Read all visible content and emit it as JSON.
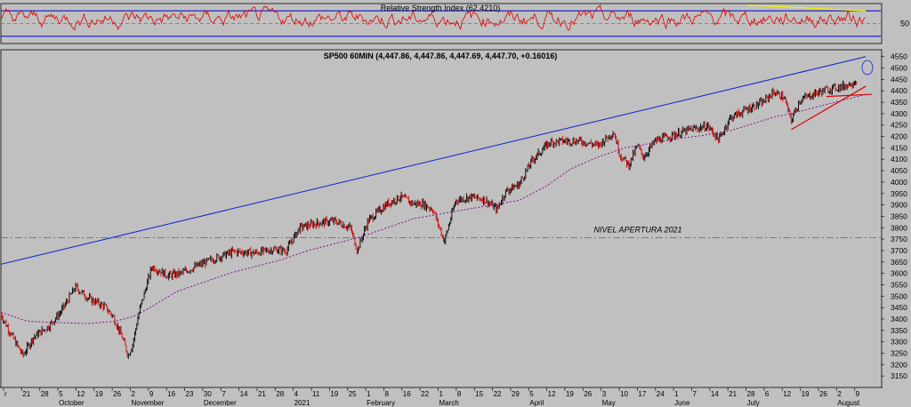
{
  "colors": {
    "background": "#c0c0c0",
    "panel_border": "#2a2a2a",
    "rsi_line": "#e00000",
    "rsi_band": "#1010d0",
    "rsi_trend": "#f0f000",
    "up_bar": "#000000",
    "down_bar": "#d00000",
    "sma": "#800080",
    "trendline": "#1020d0",
    "support_lines": "#e00000",
    "nivel_line": "#707070"
  },
  "rsi_panel": {
    "title": "Relative Strength Index (62.4210)",
    "value": 62.421,
    "levels": [
      30,
      50,
      70
    ],
    "axis_label": "50",
    "ylim": [
      20,
      80
    ]
  },
  "price_panel": {
    "title": "SP500 60MIN (4,447.86, 4,447.86, 4,447.69, 4,447.70, +0.16016)",
    "annotation": "NIVEL APERTURA 2021",
    "nivel_value": 3756
  },
  "x_axis": {
    "day_ticks": [
      "r",
      "21",
      "28",
      "5",
      "12",
      "19",
      "26",
      "2",
      "9",
      "16",
      "23",
      "30",
      "7",
      "14",
      "21",
      "28",
      "4",
      "11",
      "19",
      "25",
      "1",
      "8",
      "16",
      "22",
      "1",
      "8",
      "15",
      "22",
      "29",
      "5",
      "12",
      "19",
      "26",
      "3",
      "10",
      "17",
      "24",
      "1",
      "7",
      "14",
      "21",
      "28",
      "6",
      "12",
      "19",
      "26",
      "2",
      "9"
    ],
    "months": [
      "October",
      "November",
      "December",
      "2021",
      "February",
      "March",
      "April",
      "May",
      "June",
      "July",
      "August"
    ]
  },
  "chart_data": {
    "type": "line",
    "title": "SP500 60MIN (4,447.86, 4,447.86, 4,447.69, 4,447.70, +0.16016)",
    "ylim": [
      3100,
      4580
    ],
    "yticks": [
      3150,
      3200,
      3250,
      3300,
      3350,
      3400,
      3450,
      3500,
      3550,
      3600,
      3650,
      3700,
      3750,
      3800,
      3850,
      3900,
      3950,
      4000,
      4050,
      4100,
      4150,
      4200,
      4250,
      4300,
      4350,
      4400,
      4450,
      4500,
      4550
    ],
    "x_index_range": [
      0,
      1000
    ],
    "series": [
      {
        "kind": "price",
        "points": [
          [
            0,
            3420
          ],
          [
            12,
            3330
          ],
          [
            25,
            3240
          ],
          [
            37,
            3320
          ],
          [
            55,
            3370
          ],
          [
            68,
            3430
          ],
          [
            85,
            3540
          ],
          [
            100,
            3490
          ],
          [
            118,
            3455
          ],
          [
            128,
            3410
          ],
          [
            138,
            3320
          ],
          [
            145,
            3240
          ],
          [
            150,
            3290
          ],
          [
            158,
            3440
          ],
          [
            172,
            3630
          ],
          [
            190,
            3590
          ],
          [
            205,
            3600
          ],
          [
            222,
            3630
          ],
          [
            240,
            3660
          ],
          [
            265,
            3695
          ],
          [
            290,
            3690
          ],
          [
            310,
            3705
          ],
          [
            325,
            3700
          ],
          [
            340,
            3800
          ],
          [
            360,
            3820
          ],
          [
            380,
            3830
          ],
          [
            398,
            3800
          ],
          [
            406,
            3700
          ],
          [
            418,
            3830
          ],
          [
            440,
            3905
          ],
          [
            455,
            3935
          ],
          [
            470,
            3905
          ],
          [
            480,
            3905
          ],
          [
            492,
            3880
          ],
          [
            505,
            3740
          ],
          [
            518,
            3920
          ],
          [
            535,
            3935
          ],
          [
            550,
            3925
          ],
          [
            565,
            3880
          ],
          [
            575,
            3960
          ],
          [
            590,
            3990
          ],
          [
            605,
            4095
          ],
          [
            625,
            4175
          ],
          [
            640,
            4180
          ],
          [
            660,
            4180
          ],
          [
            680,
            4160
          ],
          [
            698,
            4220
          ],
          [
            705,
            4120
          ],
          [
            715,
            4075
          ],
          [
            725,
            4160
          ],
          [
            732,
            4110
          ],
          [
            745,
            4180
          ],
          [
            765,
            4205
          ],
          [
            785,
            4230
          ],
          [
            805,
            4245
          ],
          [
            818,
            4185
          ],
          [
            830,
            4280
          ],
          [
            850,
            4320
          ],
          [
            868,
            4350
          ],
          [
            880,
            4395
          ],
          [
            892,
            4370
          ],
          [
            900,
            4270
          ],
          [
            910,
            4360
          ],
          [
            928,
            4390
          ],
          [
            945,
            4410
          ],
          [
            960,
            4420
          ],
          [
            975,
            4445
          ]
        ]
      },
      {
        "kind": "sma",
        "points": [
          [
            0,
            3430
          ],
          [
            30,
            3390
          ],
          [
            60,
            3385
          ],
          [
            100,
            3380
          ],
          [
            130,
            3390
          ],
          [
            150,
            3410
          ],
          [
            170,
            3450
          ],
          [
            200,
            3520
          ],
          [
            230,
            3560
          ],
          [
            260,
            3600
          ],
          [
            290,
            3630
          ],
          [
            320,
            3660
          ],
          [
            350,
            3700
          ],
          [
            380,
            3730
          ],
          [
            410,
            3760
          ],
          [
            440,
            3800
          ],
          [
            470,
            3840
          ],
          [
            500,
            3860
          ],
          [
            530,
            3880
          ],
          [
            560,
            3900
          ],
          [
            590,
            3920
          ],
          [
            620,
            3980
          ],
          [
            650,
            4060
          ],
          [
            680,
            4110
          ],
          [
            710,
            4150
          ],
          [
            740,
            4170
          ],
          [
            770,
            4190
          ],
          [
            800,
            4205
          ],
          [
            830,
            4225
          ],
          [
            860,
            4260
          ],
          [
            880,
            4285
          ],
          [
            900,
            4300
          ],
          [
            930,
            4330
          ],
          [
            960,
            4360
          ],
          [
            985,
            4385
          ]
        ]
      },
      {
        "kind": "trendline",
        "points": [
          [
            0,
            3640
          ],
          [
            985,
            4550
          ]
        ]
      },
      {
        "kind": "support",
        "points": [
          [
            900,
            4230
          ],
          [
            985,
            4420
          ]
        ]
      },
      {
        "kind": "support",
        "points": [
          [
            940,
            4375
          ],
          [
            992,
            4385
          ]
        ]
      }
    ],
    "rsi_trend": {
      "points": [
        [
          850,
          79
        ],
        [
          985,
          70
        ]
      ]
    },
    "rsi_series_range": [
      37,
      79
    ]
  }
}
